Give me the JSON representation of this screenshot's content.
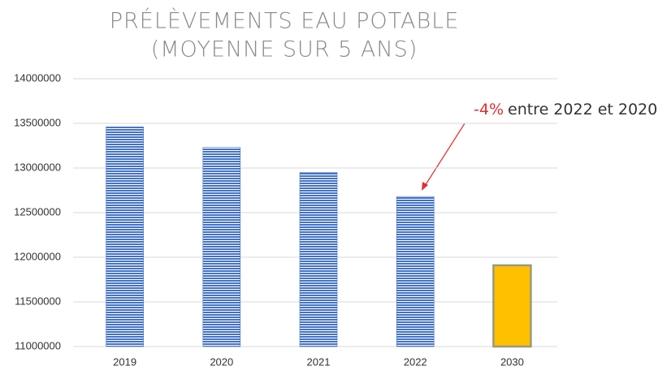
{
  "chart_data": {
    "type": "bar",
    "title": [
      "PRÉLÈVEMENTS EAU POTABLE",
      "(MOYENNE SUR 5 ANS)"
    ],
    "categories": [
      "2019",
      "2020",
      "2021",
      "2022",
      "2030"
    ],
    "values": [
      13460000,
      13230000,
      12950000,
      12680000,
      11910000
    ],
    "colors": [
      "#4472c4",
      "#4472c4",
      "#4472c4",
      "#4472c4",
      "#ffc000"
    ],
    "ylim": [
      11000000,
      14000000
    ],
    "yticks": [
      11000000,
      11500000,
      12000000,
      12500000,
      13000000,
      13500000,
      14000000
    ],
    "grid": true,
    "annotation": {
      "highlight": "-4%",
      "text": "entre 2022 et 2020"
    }
  }
}
